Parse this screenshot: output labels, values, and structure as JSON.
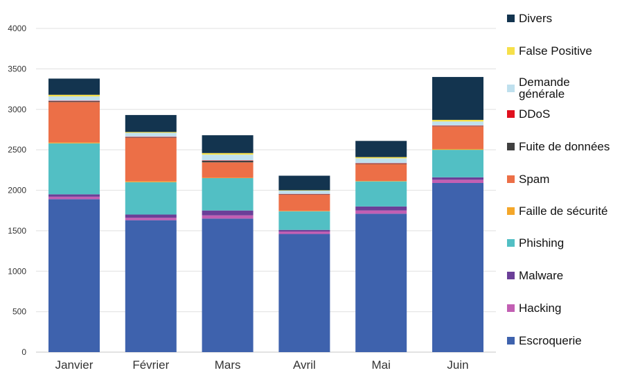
{
  "chart_data": {
    "type": "bar",
    "stacked": true,
    "title": "",
    "xlabel": "",
    "ylabel": "",
    "ylim": [
      0,
      4000
    ],
    "yticks": [
      0,
      500,
      1000,
      1500,
      2000,
      2500,
      3000,
      3500,
      4000
    ],
    "grid": true,
    "legend_position": "right",
    "categories": [
      "Janvier",
      "Février",
      "Mars",
      "Avril",
      "Mai",
      "Juin"
    ],
    "series": [
      {
        "name": "Escroquerie",
        "color": "#3e62ad",
        "values": [
          1890,
          1630,
          1650,
          1460,
          1710,
          2090
        ]
      },
      {
        "name": "Hacking",
        "color": "#c25fb3",
        "values": [
          30,
          30,
          40,
          30,
          40,
          40
        ]
      },
      {
        "name": "Malware",
        "color": "#6b3f98",
        "values": [
          30,
          40,
          60,
          20,
          50,
          30
        ]
      },
      {
        "name": "Phishing",
        "color": "#52bfc4",
        "values": [
          630,
          400,
          400,
          230,
          310,
          340
        ]
      },
      {
        "name": "Faille de sécurité",
        "color": "#f4a72a",
        "values": [
          10,
          10,
          5,
          5,
          5,
          10
        ]
      },
      {
        "name": "Spam",
        "color": "#ec6f47",
        "values": [
          500,
          540,
          190,
          200,
          210,
          280
        ]
      },
      {
        "name": "Fuite de données",
        "color": "#404040",
        "values": [
          10,
          5,
          20,
          5,
          5,
          5
        ]
      },
      {
        "name": "DDoS",
        "color": "#e0101e",
        "values": [
          5,
          5,
          5,
          5,
          5,
          5
        ]
      },
      {
        "name": "Demande générale",
        "color": "#bfe0ee",
        "values": [
          55,
          50,
          70,
          40,
          60,
          50
        ]
      },
      {
        "name": "False Positive",
        "color": "#f6e04a",
        "values": [
          20,
          10,
          20,
          5,
          15,
          20
        ]
      },
      {
        "name": "Divers",
        "color": "#13344f",
        "values": [
          200,
          210,
          220,
          180,
          200,
          530
        ]
      }
    ],
    "legend_order": [
      "Divers",
      "False Positive",
      "Demande générale",
      "DDoS",
      "Fuite de données",
      "Spam",
      "Faille de sécurité",
      "Phishing",
      "Malware",
      "Hacking",
      "Escroquerie"
    ]
  }
}
